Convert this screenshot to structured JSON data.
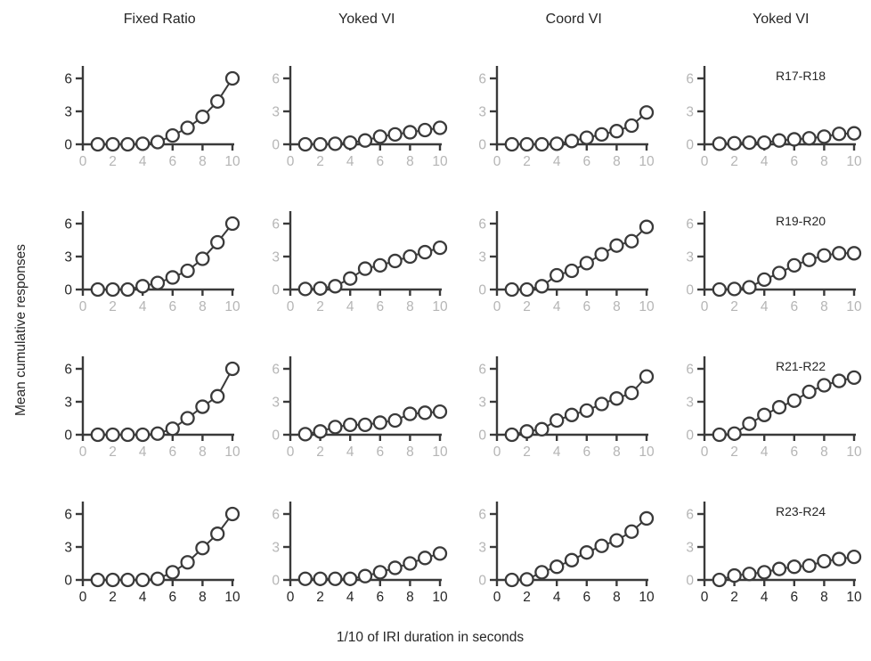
{
  "colors": {
    "line": "#3a3a3a",
    "marker_fill": "#ffffff",
    "axis": "#3a3a3a",
    "tick_label_gray": "#b5b5b5",
    "tick_label_dark": "#262626",
    "background": "#ffffff"
  },
  "chart_data": {
    "type": "line",
    "title": "",
    "xlabel": "1/10 of IRI duration in seconds",
    "ylabel": "Mean cumulative responses",
    "column_titles": [
      "Fixed Ratio",
      "Yoked VI",
      "Coord VI",
      "Yoked VI"
    ],
    "row_labels": [
      "R17-R18",
      "R19-R20",
      "R21-R22",
      "R23-R24"
    ],
    "x": [
      1,
      2,
      3,
      4,
      5,
      6,
      7,
      8,
      9,
      10
    ],
    "x_ticks": [
      0,
      2,
      4,
      6,
      8,
      10
    ],
    "y_ticks": [
      0,
      3,
      6
    ],
    "xlim": [
      0,
      10
    ],
    "ylim": [
      0,
      7
    ],
    "marker": "open-circle",
    "grid": false,
    "legend": "none",
    "panels": [
      {
        "row": 0,
        "col": 0,
        "condition": "Fixed Ratio",
        "pair": "R17-R18",
        "values": [
          0,
          0,
          0,
          0.05,
          0.2,
          0.8,
          1.5,
          2.5,
          3.9,
          6.0
        ]
      },
      {
        "row": 0,
        "col": 1,
        "condition": "Yoked VI",
        "pair": "R17-R18",
        "values": [
          0,
          0,
          0.05,
          0.15,
          0.35,
          0.7,
          0.9,
          1.1,
          1.3,
          1.5
        ]
      },
      {
        "row": 0,
        "col": 2,
        "condition": "Coord VI",
        "pair": "R17-R18",
        "values": [
          0,
          0,
          0,
          0.05,
          0.3,
          0.6,
          0.9,
          1.2,
          1.7,
          2.9
        ]
      },
      {
        "row": 0,
        "col": 3,
        "condition": "Yoked VI",
        "pair": "R17-R18",
        "values": [
          0.05,
          0.1,
          0.15,
          0.15,
          0.35,
          0.45,
          0.55,
          0.7,
          0.95,
          1.0
        ]
      },
      {
        "row": 1,
        "col": 0,
        "condition": "Fixed Ratio",
        "pair": "R19-R20",
        "values": [
          0,
          0,
          0,
          0.3,
          0.6,
          1.1,
          1.7,
          2.8,
          4.3,
          6.0
        ]
      },
      {
        "row": 1,
        "col": 1,
        "condition": "Yoked VI",
        "pair": "R19-R20",
        "values": [
          0.05,
          0.1,
          0.3,
          1.0,
          1.9,
          2.2,
          2.6,
          3.0,
          3.4,
          3.8
        ]
      },
      {
        "row": 1,
        "col": 2,
        "condition": "Coord VI",
        "pair": "R19-R20",
        "values": [
          0,
          0,
          0.3,
          1.3,
          1.7,
          2.4,
          3.2,
          4.0,
          4.4,
          5.7
        ]
      },
      {
        "row": 1,
        "col": 3,
        "condition": "Yoked VI",
        "pair": "R19-R20",
        "values": [
          0,
          0.05,
          0.2,
          0.9,
          1.5,
          2.2,
          2.7,
          3.1,
          3.3,
          3.3
        ]
      },
      {
        "row": 2,
        "col": 0,
        "condition": "Fixed Ratio",
        "pair": "R21-R22",
        "values": [
          0,
          0,
          0,
          0,
          0.1,
          0.55,
          1.5,
          2.55,
          3.5,
          6.0
        ]
      },
      {
        "row": 2,
        "col": 1,
        "condition": "Yoked VI",
        "pair": "R21-R22",
        "values": [
          0.05,
          0.3,
          0.7,
          0.9,
          0.9,
          1.1,
          1.3,
          1.9,
          2.0,
          2.1
        ]
      },
      {
        "row": 2,
        "col": 2,
        "condition": "Coord VI",
        "pair": "R21-R22",
        "values": [
          0,
          0.3,
          0.5,
          1.3,
          1.8,
          2.2,
          2.8,
          3.3,
          3.8,
          5.3
        ]
      },
      {
        "row": 2,
        "col": 3,
        "condition": "Yoked VI",
        "pair": "R21-R22",
        "values": [
          0,
          0.1,
          1.0,
          1.8,
          2.5,
          3.1,
          3.9,
          4.5,
          4.9,
          5.2
        ]
      },
      {
        "row": 3,
        "col": 0,
        "condition": "Fixed Ratio",
        "pair": "R23-R24",
        "values": [
          0,
          0,
          0,
          0,
          0.1,
          0.7,
          1.6,
          2.9,
          4.2,
          6.0
        ]
      },
      {
        "row": 3,
        "col": 1,
        "condition": "Yoked VI",
        "pair": "R23-R24",
        "values": [
          0.1,
          0.1,
          0.1,
          0.1,
          0.35,
          0.7,
          1.1,
          1.5,
          2.0,
          2.4
        ]
      },
      {
        "row": 3,
        "col": 2,
        "condition": "Coord VI",
        "pair": "R23-R24",
        "values": [
          0,
          0.05,
          0.7,
          1.2,
          1.8,
          2.5,
          3.1,
          3.6,
          4.4,
          5.6
        ]
      },
      {
        "row": 3,
        "col": 3,
        "condition": "Yoked VI",
        "pair": "R23-R24",
        "values": [
          0,
          0.4,
          0.55,
          0.7,
          1.0,
          1.2,
          1.3,
          1.7,
          1.9,
          2.1
        ]
      }
    ]
  }
}
